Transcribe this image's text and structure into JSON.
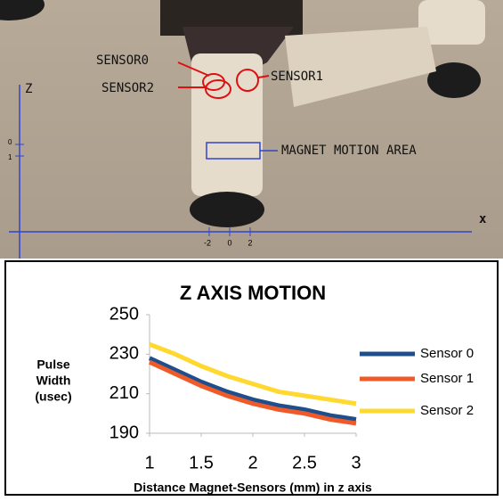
{
  "photo": {
    "labels": [
      "SENSOR0",
      "SENSOR1",
      "SENSOR2",
      "MAGNET MOTION AREA"
    ],
    "z_axis": "Z",
    "x_axis": "x",
    "x_ticks": [
      -2,
      0,
      2
    ],
    "z_ticks": [
      0,
      1
    ]
  },
  "chart_data": {
    "type": "line",
    "title": "Z AXIS MOTION",
    "x_label": "Distance Magnet-Sensors (mm) in z axis",
    "y_label": [
      "Pulse",
      "Width",
      "(usec)"
    ],
    "x": [
      1,
      1.25,
      1.5,
      1.75,
      2,
      2.25,
      2.5,
      2.75,
      3
    ],
    "series": [
      {
        "name": "Sensor 0",
        "color": "#1f4e8c",
        "values": [
          228,
          222,
          216,
          211,
          207,
          204,
          202,
          199,
          197
        ]
      },
      {
        "name": "Sensor 1",
        "color": "#f05a28",
        "values": [
          226,
          220,
          214,
          209,
          205,
          202,
          200,
          197,
          195
        ]
      },
      {
        "name": "Sensor 2",
        "color": "#ffd92f",
        "values": [
          235,
          230,
          224,
          219,
          215,
          211,
          209,
          207,
          205
        ]
      }
    ],
    "xlim": [
      1,
      3
    ],
    "xticks": [
      1,
      1.5,
      2,
      2.5,
      3
    ],
    "ylim": [
      190,
      250
    ],
    "yticks": [
      190,
      210,
      230,
      250
    ],
    "grid": false,
    "legend": "right"
  }
}
